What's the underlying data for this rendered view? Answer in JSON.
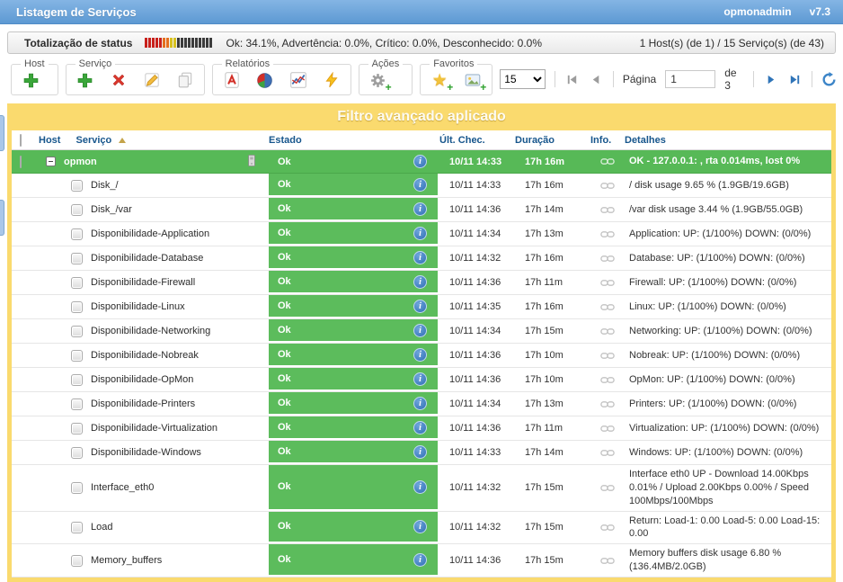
{
  "header": {
    "title": "Listagem de Serviços",
    "user": "opmonadmin",
    "version": "v7.3"
  },
  "status_bar": {
    "label": "Totalização de status",
    "summary": "Ok: 34.1%, Advertência: 0.0%, Crítico: 0.0%, Desconhecido: 0.0%",
    "counts": "1 Host(s) (de 1) / 15 Serviço(s) (de 43)",
    "segment_colors": [
      "#C8201C",
      "#C8201C",
      "#C8201C",
      "#C8201C",
      "#C8201C",
      "#E56F1E",
      "#E56F1E",
      "#D8C21F",
      "#D8C21F",
      "#3C3C3C",
      "#3C3C3C",
      "#3C3C3C",
      "#3C3C3C",
      "#3C3C3C",
      "#3C3C3C",
      "#3C3C3C",
      "#3C3C3C",
      "#3C3C3C",
      "#3C3C3C"
    ]
  },
  "toolbar": {
    "groups": {
      "host": "Host",
      "servico": "Serviço",
      "relatorios": "Relatórios",
      "acoes": "Ações",
      "favoritos": "Favoritos"
    },
    "pagination": {
      "page_size": "15",
      "page_label": "Página",
      "current_page": "1",
      "total_label": "de 3"
    }
  },
  "filter_banner": "Filtro avançado aplicado",
  "table": {
    "columns": [
      "Host",
      "Serviço",
      "Estado",
      "Últ. Chec.",
      "Duração",
      "Info.",
      "Detalhes"
    ],
    "host_row": {
      "name": "opmon",
      "estado": "Ok",
      "last_check": "10/11 14:33",
      "duration": "17h 16m",
      "details": "OK - 127.0.0.1: , rta 0.014ms, lost 0%"
    },
    "rows": [
      {
        "service": "Disk_/",
        "estado": "Ok",
        "last_check": "10/11 14:33",
        "duration": "17h 16m",
        "details": "/ disk usage 9.65 % (1.9GB/19.6GB)"
      },
      {
        "service": "Disk_/var",
        "estado": "Ok",
        "last_check": "10/11 14:36",
        "duration": "17h 14m",
        "details": "/var disk usage 3.44 % (1.9GB/55.0GB)"
      },
      {
        "service": "Disponibilidade-Application",
        "estado": "Ok",
        "last_check": "10/11 14:34",
        "duration": "17h 13m",
        "details": "Application: UP: (1/100%) DOWN: (0/0%)"
      },
      {
        "service": "Disponibilidade-Database",
        "estado": "Ok",
        "last_check": "10/11 14:32",
        "duration": "17h 16m",
        "details": "Database: UP: (1/100%) DOWN: (0/0%)"
      },
      {
        "service": "Disponibilidade-Firewall",
        "estado": "Ok",
        "last_check": "10/11 14:36",
        "duration": "17h 11m",
        "details": "Firewall: UP: (1/100%) DOWN: (0/0%)"
      },
      {
        "service": "Disponibilidade-Linux",
        "estado": "Ok",
        "last_check": "10/11 14:35",
        "duration": "17h 16m",
        "details": "Linux: UP: (1/100%) DOWN: (0/0%)"
      },
      {
        "service": "Disponibilidade-Networking",
        "estado": "Ok",
        "last_check": "10/11 14:34",
        "duration": "17h 15m",
        "details": "Networking: UP: (1/100%) DOWN: (0/0%)"
      },
      {
        "service": "Disponibilidade-Nobreak",
        "estado": "Ok",
        "last_check": "10/11 14:36",
        "duration": "17h 10m",
        "details": "Nobreak: UP: (1/100%) DOWN: (0/0%)"
      },
      {
        "service": "Disponibilidade-OpMon",
        "estado": "Ok",
        "last_check": "10/11 14:36",
        "duration": "17h 10m",
        "details": "OpMon: UP: (1/100%) DOWN: (0/0%)"
      },
      {
        "service": "Disponibilidade-Printers",
        "estado": "Ok",
        "last_check": "10/11 14:34",
        "duration": "17h 13m",
        "details": "Printers: UP: (1/100%) DOWN: (0/0%)"
      },
      {
        "service": "Disponibilidade-Virtualization",
        "estado": "Ok",
        "last_check": "10/11 14:36",
        "duration": "17h 11m",
        "details": "Virtualization: UP: (1/100%) DOWN: (0/0%)"
      },
      {
        "service": "Disponibilidade-Windows",
        "estado": "Ok",
        "last_check": "10/11 14:33",
        "duration": "17h 14m",
        "details": "Windows: UP: (1/100%) DOWN: (0/0%)"
      },
      {
        "service": "Interface_eth0",
        "estado": "Ok",
        "last_check": "10/11 14:32",
        "duration": "17h 15m",
        "details": "Interface eth0 UP - Download 14.00Kbps 0.01% / Upload 2.00Kbps 0.00% / Speed 100Mbps/100Mbps"
      },
      {
        "service": "Load",
        "estado": "Ok",
        "last_check": "10/11 14:32",
        "duration": "17h 15m",
        "details": "Return: Load-1: 0.00 Load-5: 0.00 Load-15: 0.00"
      },
      {
        "service": "Memory_buffers",
        "estado": "Ok",
        "last_check": "10/11 14:36",
        "duration": "17h 15m",
        "details": "Memory buffers disk usage 6.80 % (136.4MB/2.0GB)"
      }
    ]
  }
}
